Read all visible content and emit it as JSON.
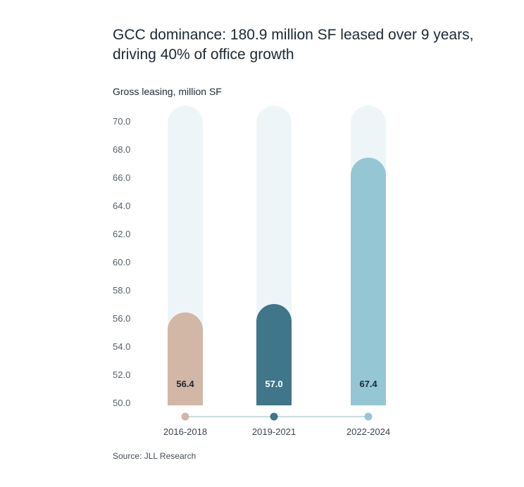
{
  "title": "GCC dominance: 180.9 million SF leased over 9 years, driving 40% of office growth",
  "source": "Source: JLL Research",
  "chart_data": {
    "type": "bar",
    "title": "GCC dominance: 180.9 million SF leased over 9 years, driving 40% of office growth",
    "ylabel": "Gross leasing, million SF",
    "xlabel": "",
    "categories": [
      "2016-2018",
      "2019-2021",
      "2022-2024"
    ],
    "values": [
      56.4,
      57.0,
      67.4
    ],
    "value_labels": [
      "56.4",
      "57.0",
      "67.4"
    ],
    "ylim": [
      50.0,
      70.0
    ],
    "yticks": [
      "50.0",
      "52.0",
      "54.0",
      "56.0",
      "58.0",
      "60.0",
      "62.0",
      "64.0",
      "66.0",
      "68.0",
      "70.0"
    ],
    "bar_colors": [
      "#d2b6a6",
      "#3f7689",
      "#95c6d4"
    ],
    "track_color": "#eef5f8",
    "value_label_colors": [
      "#1b2733",
      "#ffffff",
      "#1b2733"
    ],
    "grid": false,
    "legend": "none"
  }
}
